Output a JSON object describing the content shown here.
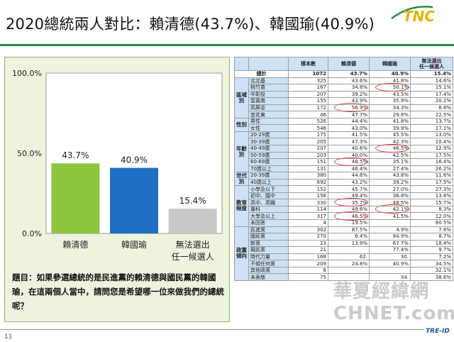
{
  "title": "2020總統兩人對比：賴清德(43.7%)、韓國瑜(40.9%)",
  "logo_text": "TNC",
  "page_number": "11",
  "footer_logo": "TRE-ID",
  "watermark": "華夏經緯網 CHNET.com",
  "question": "題目：如果參選總統的是民進黨的賴清德與國民黨的韓國瑜，在這兩個人當中，請問您是希望哪一位來做我們的總統呢？",
  "colors": {
    "green": "#8cc63f",
    "blue": "#1f6fc5",
    "gray": "#c8c8c8",
    "circle": "#d23b3b"
  },
  "chart_data": {
    "type": "bar",
    "categories": [
      "賴清德",
      "韓國瑜",
      "無法選出\n任一候選人"
    ],
    "category_lines": [
      [
        "賴清德"
      ],
      [
        "韓國瑜"
      ],
      [
        "無法選出",
        "任一候選人"
      ]
    ],
    "values": [
      43.7,
      40.9,
      15.4
    ],
    "value_labels": [
      "43.7%",
      "40.9%",
      "15.4%"
    ],
    "bar_colors": [
      "#8cc63f",
      "#1f6fc5",
      "#c8c8c8"
    ],
    "ylim": [
      0,
      100
    ],
    "yticks": [
      "0.0%",
      "50.0%",
      "100.0%"
    ],
    "ytick_values": [
      0,
      50,
      100
    ],
    "grid": false,
    "title": "",
    "xlabel": "",
    "ylabel": ""
  },
  "table": {
    "headers": [
      "",
      "",
      "樣本數",
      "賴清德",
      "韓國瑜",
      "無法選出\n任一候選人"
    ],
    "total": {
      "label": "總計",
      "n": "1072",
      "lai": "43.7%",
      "han": "40.9%",
      "none": "15.4%"
    },
    "groups": [
      {
        "name": "區域別",
        "rows": [
          [
            "北北基",
            "325",
            "43.6%",
            "41.8%",
            "14.6%"
          ],
          [
            "桃竹苗",
            "167",
            "34.8%",
            "50.1%",
            "15.1%"
          ],
          [
            "中彰投",
            "207",
            "39.2%",
            "43.5%",
            "17.4%"
          ],
          [
            "雲嘉南",
            "155",
            "43.9%",
            "35.9%",
            "20.2%"
          ],
          [
            "高屏澎",
            "172",
            "56.9%",
            "34.3%",
            "8.8%"
          ],
          [
            "宜花東",
            "46",
            "47.7%",
            "29.8%",
            "22.5%"
          ]
        ]
      },
      {
        "name": "性別",
        "rows": [
          [
            "男性",
            "526",
            "44.4%",
            "41.8%",
            "13.7%"
          ],
          [
            "女性",
            "546",
            "43.0%",
            "39.9%",
            "17.1%"
          ]
        ]
      },
      {
        "name": "年齡別",
        "rows": [
          [
            "20-29歲",
            "175",
            "41.5%",
            "45.5%",
            "13.0%"
          ],
          [
            "30-39歲",
            "205",
            "47.3%",
            "42.3%",
            "10.4%"
          ],
          [
            "40-49歲",
            "207",
            "40.6%",
            "46.5%",
            "12.9%"
          ],
          [
            "50-59歲",
            "203",
            "40.0%",
            "42.5%",
            "17.5%"
          ],
          [
            "60-69歲",
            "151",
            "48.5%",
            "35.1%",
            "16.4%"
          ],
          [
            "70歲以上",
            "131",
            "46.4%",
            "27.4%",
            "26.2%"
          ]
        ]
      },
      {
        "name": "世代別",
        "rows": [
          [
            "20-39歲",
            "380",
            "44.6%",
            "43.8%",
            "11.6%"
          ],
          [
            "40歲以上",
            "692",
            "43.2%",
            "39.2%",
            "17.5%"
          ]
        ]
      },
      {
        "name": "教育程度",
        "rows": [
          [
            "小學及以下",
            "152",
            "45.7%",
            "27.0%",
            "27.3%"
          ],
          [
            "初中、國中",
            "156",
            "49.4%",
            "36.8%",
            "13.8%"
          ],
          [
            "高中、高職",
            "330",
            "35.7%",
            "48.5%",
            "15.7%"
          ],
          [
            "專科",
            "114",
            "49.6%",
            "42.1%",
            "8.3%"
          ],
          [
            "大學及以上",
            "317",
            "46.5%",
            "41.5%",
            "12.0%"
          ],
          [
            "未回答",
            "4",
            "19.5%",
            "",
            "80.5%"
          ]
        ]
      },
      {
        "name": "政黨傾向",
        "rows": [
          [
            "民進黨",
            "302",
            "87.5%",
            "4.9%",
            "7.6%"
          ],
          [
            "國民黨",
            "270",
            "6.4%",
            "84.9%",
            "8.7%"
          ],
          [
            "新黨",
            "23",
            "13.9%",
            "67.7%",
            "18.4%"
          ],
          [
            "親民黨",
            "21",
            "",
            "77.4%",
            "9.7%"
          ],
          [
            "時代力量",
            "168",
            "62.",
            "30.",
            "7.2%"
          ],
          [
            "不傾任何黨",
            "209",
            "24.8%",
            "40.9%",
            "34.5%"
          ],
          [
            "其他政黨",
            "6",
            "",
            "",
            "32.1%"
          ],
          [
            "未表態",
            "75",
            "",
            "34.",
            "38.6%"
          ]
        ]
      }
    ]
  }
}
